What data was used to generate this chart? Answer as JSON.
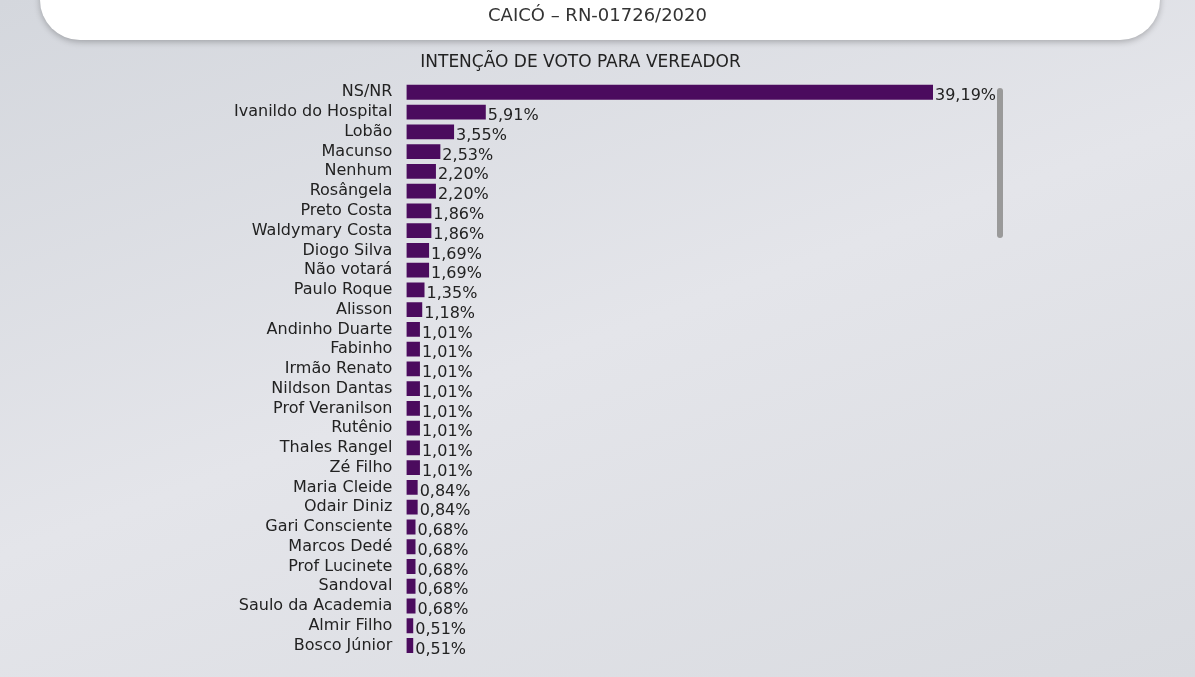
{
  "chart_data": {
    "type": "bar",
    "orientation": "horizontal",
    "title": "CAICÓ – RN-01726/2020",
    "subtitle": "INTENÇÃO DE VOTO PARA VEREADOR",
    "categories": [
      "NS/NR",
      "Ivanildo do Hospital",
      "Lobão",
      "Macunso",
      "Nenhum",
      "Rosângela",
      "Preto Costa",
      "Waldymary Costa",
      "Diogo Silva",
      "Não votará",
      "Paulo Roque",
      "Alisson",
      "Andinho Duarte",
      "Fabinho",
      "Irmão Renato",
      "Nildson Dantas",
      "Prof Veranilson",
      "Rutênio",
      "Thales Rangel",
      "Zé Filho",
      "Maria Cleide",
      "Odair Diniz",
      "Gari Consciente",
      "Marcos Dedé",
      "Prof Lucinete",
      "Sandoval",
      "Saulo da Academia",
      "Almir Filho",
      "Bosco Júnior"
    ],
    "values": [
      39.19,
      5.91,
      3.55,
      2.53,
      2.2,
      2.2,
      1.86,
      1.86,
      1.69,
      1.69,
      1.35,
      1.18,
      1.01,
      1.01,
      1.01,
      1.01,
      1.01,
      1.01,
      1.01,
      1.01,
      0.84,
      0.84,
      0.68,
      0.68,
      0.68,
      0.68,
      0.68,
      0.51,
      0.51
    ],
    "value_labels": [
      "39,19%",
      "5,91%",
      "3,55%",
      "2,53%",
      "2,20%",
      "2,20%",
      "1,86%",
      "1,86%",
      "1,69%",
      "1,69%",
      "1,35%",
      "1,18%",
      "1,01%",
      "1,01%",
      "1,01%",
      "1,01%",
      "1,01%",
      "1,01%",
      "1,01%",
      "1,01%",
      "0,84%",
      "0,84%",
      "0,68%",
      "0,68%",
      "0,68%",
      "0,68%",
      "0,68%",
      "0,51%",
      "0,51%"
    ],
    "color": "#4b0b5e",
    "legend": false,
    "tick_labels": "y"
  }
}
